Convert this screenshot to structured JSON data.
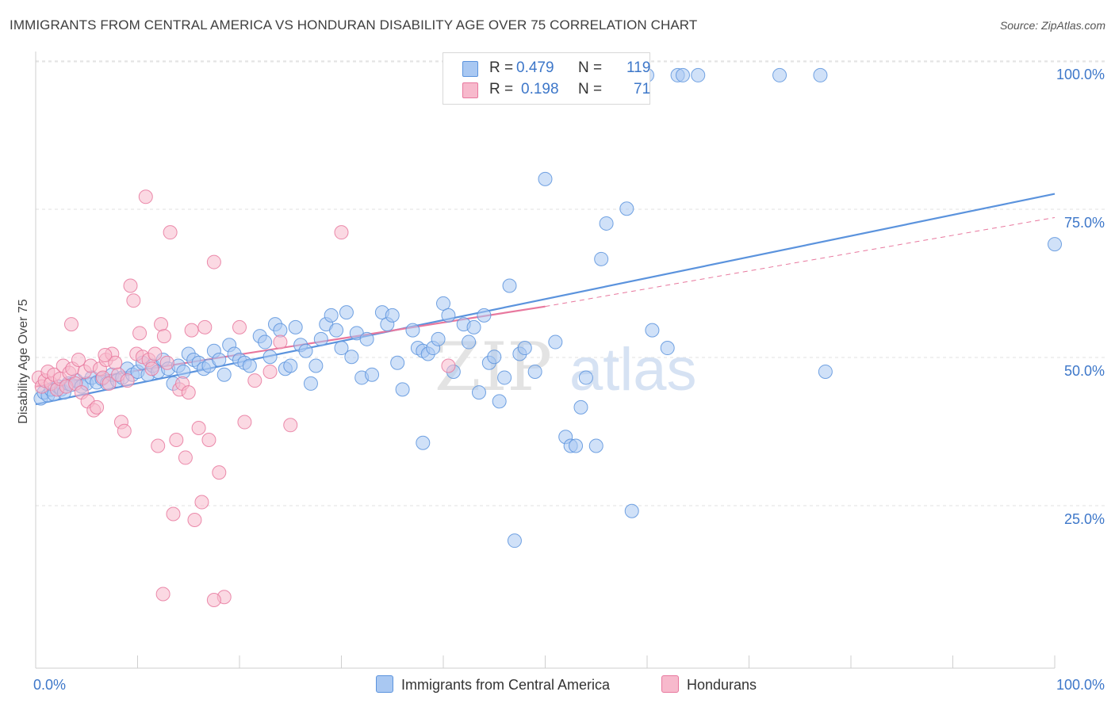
{
  "header": {
    "title": "IMMIGRANTS FROM CENTRAL AMERICA VS HONDURAN DISABILITY AGE OVER 75 CORRELATION CHART",
    "source": "Source: ZipAtlas.com"
  },
  "legend": {
    "r_label": "R =",
    "n_label": "N =",
    "rows": [
      {
        "r": "0.479",
        "n": "119",
        "color": "#a9c8f2"
      },
      {
        "r": "0.198",
        "n": "71",
        "color": "#f7b9cc"
      }
    ]
  },
  "watermark": {
    "zip": "ZIP",
    "atlas": "atlas"
  },
  "chart_data": {
    "type": "scatter",
    "title": "IMMIGRANTS FROM CENTRAL AMERICA VS HONDURAN DISABILITY AGE OVER 75 CORRELATION CHART",
    "ylabel": "Disability Age Over 75",
    "xlabel": "",
    "xlim": [
      0,
      100
    ],
    "ylim": [
      0,
      104
    ],
    "x_tick_labels": [
      "0.0%",
      "100.0%"
    ],
    "y_tick_labels": [
      "25.0%",
      "50.0%",
      "75.0%",
      "100.0%"
    ],
    "y_ticks": [
      25,
      50,
      75,
      100
    ],
    "grid": true,
    "legend_position": "top-center",
    "series": [
      {
        "name": "Immigrants from Central America",
        "color": "#5b93dd",
        "fill": "#a9c8f2",
        "trend": {
          "x": [
            0,
            100
          ],
          "y": [
            44.5,
            80.0
          ]
        },
        "points": [
          [
            0.5,
            45.5
          ],
          [
            0.8,
            46.5
          ],
          [
            1.2,
            46
          ],
          [
            1.5,
            47
          ],
          [
            1.8,
            46.2
          ],
          [
            2.2,
            47.5
          ],
          [
            2.5,
            47
          ],
          [
            2.8,
            46.5
          ],
          [
            3.2,
            48
          ],
          [
            3.5,
            47.8
          ],
          [
            4,
            48.5
          ],
          [
            4.5,
            47.5
          ],
          [
            5,
            48
          ],
          [
            5.5,
            49
          ],
          [
            6,
            48.2
          ],
          [
            6.5,
            48.8
          ],
          [
            7,
            48
          ],
          [
            7.5,
            49.5
          ],
          [
            8,
            48.5
          ],
          [
            8.5,
            49
          ],
          [
            9,
            50.5
          ],
          [
            9.5,
            49.5
          ],
          [
            10,
            50
          ],
          [
            10.5,
            51.5
          ],
          [
            11,
            49.5
          ],
          [
            11.5,
            51
          ],
          [
            12,
            50
          ],
          [
            12.5,
            52
          ],
          [
            13,
            50.5
          ],
          [
            13.5,
            48
          ],
          [
            14,
            51
          ],
          [
            14.5,
            50
          ],
          [
            15,
            53
          ],
          [
            15.5,
            52
          ],
          [
            16,
            51.5
          ],
          [
            16.5,
            50.5
          ],
          [
            17,
            51
          ],
          [
            17.5,
            53.5
          ],
          [
            18,
            52
          ],
          [
            18.5,
            49.5
          ],
          [
            19,
            54.5
          ],
          [
            19.5,
            53
          ],
          [
            20,
            52
          ],
          [
            20.5,
            51.5
          ],
          [
            21,
            51
          ],
          [
            22,
            56
          ],
          [
            22.5,
            55
          ],
          [
            23,
            52.5
          ],
          [
            23.5,
            58
          ],
          [
            24,
            57
          ],
          [
            24.5,
            50.5
          ],
          [
            25,
            51
          ],
          [
            25.5,
            57.5
          ],
          [
            26,
            54.5
          ],
          [
            26.5,
            53.5
          ],
          [
            27,
            48
          ],
          [
            27.5,
            51
          ],
          [
            28,
            55.5
          ],
          [
            28.5,
            58
          ],
          [
            29,
            59.5
          ],
          [
            29.5,
            57
          ],
          [
            30,
            54
          ],
          [
            30.5,
            60
          ],
          [
            31,
            52.5
          ],
          [
            31.5,
            56.5
          ],
          [
            32,
            49
          ],
          [
            32.5,
            55.5
          ],
          [
            33,
            49.5
          ],
          [
            34,
            60
          ],
          [
            34.5,
            58
          ],
          [
            35,
            59.5
          ],
          [
            35.5,
            51.5
          ],
          [
            36,
            47
          ],
          [
            37,
            57
          ],
          [
            37.5,
            54
          ],
          [
            38,
            53.5
          ],
          [
            38.5,
            53
          ],
          [
            39,
            54
          ],
          [
            39.5,
            55.5
          ],
          [
            40,
            61.5
          ],
          [
            40.5,
            59.5
          ],
          [
            41,
            50
          ],
          [
            42,
            58
          ],
          [
            42.5,
            55
          ],
          [
            43,
            57.5
          ],
          [
            43.5,
            46.5
          ],
          [
            44,
            59.5
          ],
          [
            44.5,
            51.5
          ],
          [
            45,
            52.5
          ],
          [
            45.5,
            45
          ],
          [
            46,
            49
          ],
          [
            46.5,
            64.5
          ],
          [
            47.5,
            53
          ],
          [
            48,
            54
          ],
          [
            49,
            50
          ],
          [
            50,
            82.5
          ],
          [
            52,
            39
          ],
          [
            52.5,
            37.5
          ],
          [
            53,
            37.5
          ],
          [
            53.5,
            44
          ],
          [
            55,
            37.5
          ],
          [
            55.5,
            69
          ],
          [
            56,
            75
          ],
          [
            58,
            77.5
          ],
          [
            58.5,
            26.5
          ],
          [
            60,
            100
          ],
          [
            62,
            54
          ],
          [
            63,
            100
          ],
          [
            63.5,
            100
          ],
          [
            65,
            100
          ],
          [
            73,
            100
          ],
          [
            77,
            100
          ],
          [
            77.5,
            50
          ],
          [
            100,
            71.5
          ],
          [
            47,
            21.5
          ],
          [
            38,
            38
          ],
          [
            51,
            55
          ],
          [
            54,
            49
          ],
          [
            60.5,
            57
          ]
        ]
      },
      {
        "name": "Hondurans",
        "color": "#e8789e",
        "fill": "#f7b9cc",
        "trend": {
          "x": [
            0,
            50
          ],
          "y": [
            47.5,
            61.0
          ]
        },
        "trend_dashed": {
          "x": [
            50,
            100
          ],
          "y": [
            61.0,
            76.0
          ]
        },
        "points": [
          [
            0.3,
            49
          ],
          [
            0.6,
            47.5
          ],
          [
            0.9,
            48.5
          ],
          [
            1.2,
            50
          ],
          [
            1.5,
            48
          ],
          [
            1.8,
            49.5
          ],
          [
            2.1,
            47
          ],
          [
            2.4,
            48.8
          ],
          [
            2.7,
            51
          ],
          [
            3,
            47.5
          ],
          [
            3.3,
            49.8
          ],
          [
            3.6,
            50.5
          ],
          [
            3.9,
            48
          ],
          [
            4.2,
            52
          ],
          [
            4.5,
            46.5
          ],
          [
            4.8,
            50
          ],
          [
            5.1,
            45
          ],
          [
            5.4,
            51
          ],
          [
            5.7,
            43.5
          ],
          [
            6,
            44
          ],
          [
            6.3,
            50.5
          ],
          [
            6.6,
            49
          ],
          [
            6.9,
            52
          ],
          [
            7.2,
            48
          ],
          [
            7.5,
            53
          ],
          [
            7.8,
            51.5
          ],
          [
            8.1,
            49.5
          ],
          [
            8.4,
            41.5
          ],
          [
            8.7,
            40
          ],
          [
            9,
            48.5
          ],
          [
            9.3,
            64.5
          ],
          [
            9.6,
            62
          ],
          [
            9.9,
            53
          ],
          [
            10.2,
            56.5
          ],
          [
            10.5,
            52.5
          ],
          [
            10.8,
            79.5
          ],
          [
            11.1,
            52
          ],
          [
            11.4,
            50.5
          ],
          [
            11.7,
            53
          ],
          [
            12,
            37.5
          ],
          [
            12.3,
            58
          ],
          [
            12.6,
            56
          ],
          [
            12.9,
            51.5
          ],
          [
            13.2,
            73.5
          ],
          [
            13.5,
            26
          ],
          [
            13.8,
            38.5
          ],
          [
            14.1,
            47
          ],
          [
            14.4,
            48
          ],
          [
            14.7,
            35.5
          ],
          [
            15,
            46.5
          ],
          [
            15.3,
            57
          ],
          [
            15.6,
            25
          ],
          [
            16,
            40.5
          ],
          [
            16.3,
            28
          ],
          [
            16.6,
            57.5
          ],
          [
            17,
            38.5
          ],
          [
            17.5,
            68.5
          ],
          [
            18,
            33
          ],
          [
            18.5,
            12
          ],
          [
            20,
            57.5
          ],
          [
            20.5,
            41.5
          ],
          [
            21.5,
            48.5
          ],
          [
            23,
            50
          ],
          [
            24,
            55
          ],
          [
            25,
            41
          ],
          [
            30,
            73.5
          ],
          [
            3.5,
            58
          ],
          [
            12.5,
            12.5
          ],
          [
            17.5,
            11.5
          ],
          [
            40.5,
            51
          ],
          [
            6.8,
            52.8
          ]
        ]
      }
    ]
  },
  "bottom_legend": [
    {
      "label": "Immigrants from Central America",
      "color": "#a9c8f2",
      "border": "#5b93dd"
    },
    {
      "label": "Hondurans",
      "color": "#f7b9cc",
      "border": "#e8789e"
    }
  ]
}
